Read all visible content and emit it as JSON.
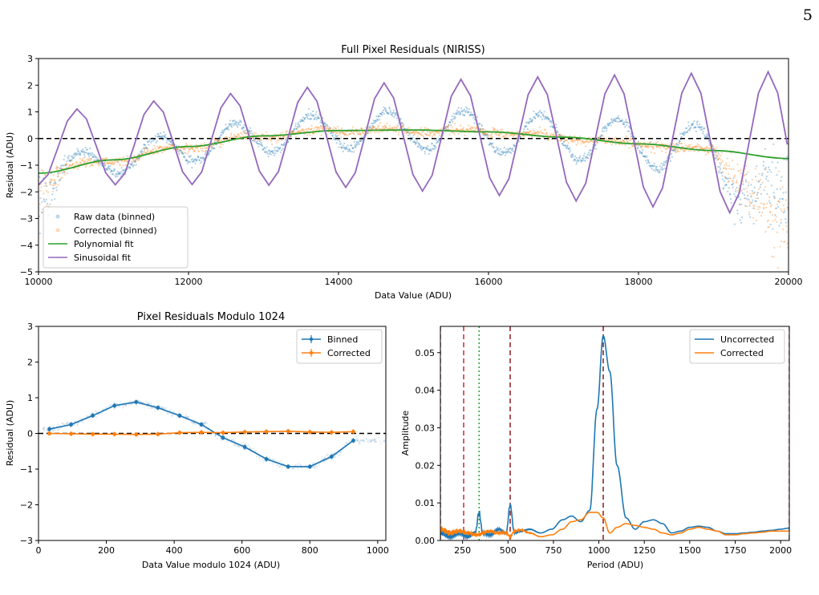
{
  "page_number": "5",
  "chart_data": [
    {
      "type": "scatter",
      "title": "Full Pixel Residuals (NIRISS)",
      "xlabel": "Data Value (ADU)",
      "ylabel": "Residual (ADU)",
      "xlim": [
        10000,
        20000
      ],
      "ylim": [
        -5,
        3
      ],
      "xticks": [
        "10000",
        "12000",
        "14000",
        "16000",
        "18000",
        "20000"
      ],
      "yticks": [
        "3",
        "2",
        "1",
        "0",
        "−1",
        "−2",
        "−3",
        "−4",
        "−5"
      ],
      "legend_position": "lower-left",
      "reference_line_y": 0,
      "colors": {
        "raw": "#1f77b4",
        "corrected": "#ff7f0e",
        "poly": "#2ca02c",
        "sine": "#9467bd"
      },
      "series": [
        {
          "name": "Raw data (binned)",
          "style": "points",
          "model": {
            "amplitude": 0.45,
            "period": 1024,
            "phase_x": 10300,
            "trend_coeffs": [
              -1.3,
              0.32,
              -0.75
            ]
          }
        },
        {
          "name": "Corrected (binned)",
          "style": "points",
          "model": {
            "amplitude": 0.08,
            "trend_coeffs": [
              -1.3,
              0.32,
              -0.75
            ]
          }
        },
        {
          "name": "Polynomial fit",
          "style": "line",
          "x": [
            10000,
            11000,
            12000,
            13000,
            14000,
            15000,
            16000,
            17000,
            18000,
            19000,
            20000
          ],
          "y": [
            -1.3,
            -0.8,
            -0.3,
            0.1,
            0.3,
            0.32,
            0.25,
            0.05,
            -0.2,
            -0.45,
            -0.75
          ]
        },
        {
          "name": "Sinusoidal fit",
          "style": "line",
          "amplitude_start": 1.35,
          "amplitude_end": 2.75,
          "period": 1024,
          "peak_x": 10512
        }
      ]
    },
    {
      "type": "line",
      "title": "Pixel Residuals Modulo 1024",
      "xlabel": "Data Value modulo 1024 (ADU)",
      "ylabel": "Residual (ADU)",
      "xlim": [
        0,
        1024
      ],
      "ylim": [
        -3,
        3
      ],
      "xticks": [
        "0",
        "200",
        "400",
        "600",
        "800",
        "1000"
      ],
      "yticks": [
        "3",
        "2",
        "1",
        "0",
        "−1",
        "−2",
        "−3"
      ],
      "legend_position": "top-right",
      "reference_line_y": 0,
      "series": [
        {
          "name": "Binned",
          "color": "#1f77b4",
          "x": [
            32,
            96,
            160,
            224,
            288,
            352,
            416,
            480,
            544,
            608,
            672,
            736,
            800,
            864,
            928
          ],
          "y": [
            0.12,
            0.25,
            0.5,
            0.78,
            0.88,
            0.72,
            0.5,
            0.25,
            -0.12,
            -0.38,
            -0.72,
            -0.93,
            -0.93,
            -0.65,
            -0.2
          ]
        },
        {
          "name": "Corrected",
          "color": "#ff7f0e",
          "x": [
            32,
            96,
            160,
            224,
            288,
            352,
            416,
            480,
            544,
            608,
            672,
            736,
            800,
            864,
            928
          ],
          "y": [
            0.0,
            -0.01,
            -0.02,
            -0.02,
            -0.03,
            -0.02,
            0.02,
            0.03,
            0.02,
            0.04,
            0.05,
            0.06,
            0.04,
            0.03,
            0.05
          ]
        }
      ]
    },
    {
      "type": "line",
      "title": "",
      "xlabel": "Period (ADU)",
      "ylabel": "Amplitude",
      "xlim": [
        128,
        2048
      ],
      "ylim": [
        0,
        0.057
      ],
      "xticks": [
        "250",
        "500",
        "750",
        "1000",
        "1250",
        "1500",
        "1750",
        "2000"
      ],
      "yticks": [
        "0.05",
        "0.04",
        "0.03",
        "0.02",
        "0.01",
        "0.00"
      ],
      "legend_position": "top-right",
      "vertical_lines": [
        {
          "x": 128,
          "color": "#8b1a1a",
          "dash": "dashed"
        },
        {
          "x": 256,
          "color": "#d62728",
          "dash": "dashed"
        },
        {
          "x": 341,
          "color": "#2ca02c",
          "dash": "dotted"
        },
        {
          "x": 512,
          "color": "#8b1a1a",
          "dash": "dashed"
        },
        {
          "x": 1024,
          "color": "#8b1a1a",
          "dash": "dashed"
        },
        {
          "x": 2048,
          "color": "#8b1a1a",
          "dash": "dashed"
        }
      ],
      "series": [
        {
          "name": "Uncorrected",
          "color": "#1f77b4",
          "x": [
            130,
            180,
            230,
            280,
            320,
            341,
            360,
            400,
            450,
            490,
            512,
            535,
            570,
            620,
            680,
            740,
            800,
            850,
            900,
            950,
            990,
            1024,
            1060,
            1100,
            1150,
            1200,
            1250,
            1300,
            1350,
            1400,
            1450,
            1500,
            1550,
            1600,
            1650,
            1700,
            1750,
            1800,
            1850,
            1900,
            1950,
            2000,
            2048
          ],
          "y": [
            0.002,
            0.001,
            0.002,
            0.001,
            0.002,
            0.0075,
            0.002,
            0.0015,
            0.003,
            0.002,
            0.0095,
            0.002,
            0.0025,
            0.003,
            0.002,
            0.003,
            0.0055,
            0.0065,
            0.005,
            0.008,
            0.035,
            0.0545,
            0.045,
            0.02,
            0.006,
            0.003,
            0.005,
            0.0055,
            0.0045,
            0.002,
            0.0025,
            0.0035,
            0.0038,
            0.0035,
            0.0025,
            0.0018,
            0.0018,
            0.002,
            0.0022,
            0.0025,
            0.0027,
            0.003,
            0.0033
          ]
        },
        {
          "name": "Corrected",
          "color": "#ff7f0e",
          "x": [
            130,
            180,
            230,
            280,
            320,
            341,
            360,
            400,
            450,
            490,
            512,
            535,
            570,
            620,
            680,
            740,
            800,
            850,
            900,
            950,
            990,
            1024,
            1060,
            1100,
            1150,
            1200,
            1250,
            1300,
            1350,
            1400,
            1450,
            1500,
            1550,
            1600,
            1650,
            1700,
            1750,
            1800,
            1850,
            1900,
            1950,
            2000,
            2048
          ],
          "y": [
            0.003,
            0.002,
            0.0025,
            0.002,
            0.0015,
            0.0015,
            0.002,
            0.0025,
            0.002,
            0.002,
            0.001,
            0.0025,
            0.0028,
            0.002,
            0.001,
            0.0015,
            0.003,
            0.005,
            0.0055,
            0.0075,
            0.0075,
            0.006,
            0.002,
            0.0035,
            0.0045,
            0.004,
            0.0035,
            0.003,
            0.002,
            0.0015,
            0.002,
            0.003,
            0.0035,
            0.003,
            0.0025,
            0.0015,
            0.0015,
            0.0018,
            0.002,
            0.0022,
            0.0025,
            0.0025,
            0.0025
          ]
        }
      ]
    }
  ]
}
